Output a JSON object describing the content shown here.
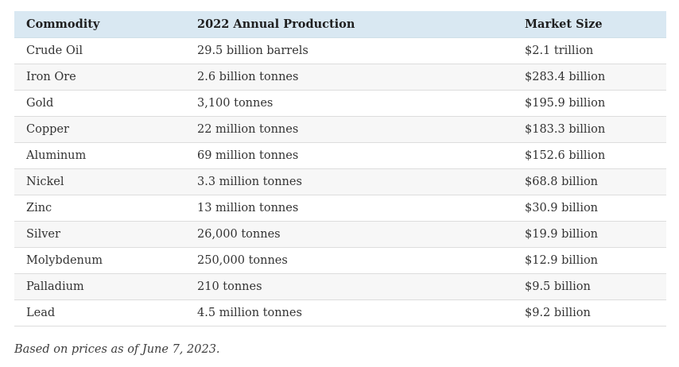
{
  "chart_data": {
    "type": "table",
    "columns": [
      "Commodity",
      "2022 Annual Production",
      "Market Size"
    ],
    "rows": [
      {
        "commodity": "Crude Oil",
        "production": "29.5 billion barrels",
        "market_size": "$2.1 trillion"
      },
      {
        "commodity": "Iron Ore",
        "production": "2.6 billion tonnes",
        "market_size": "$283.4 billion"
      },
      {
        "commodity": "Gold",
        "production": "3,100 tonnes",
        "market_size": "$195.9 billion"
      },
      {
        "commodity": "Copper",
        "production": "22 million tonnes",
        "market_size": "$183.3 billion"
      },
      {
        "commodity": "Aluminum",
        "production": "69 million tonnes",
        "market_size": "$152.6 billion"
      },
      {
        "commodity": "Nickel",
        "production": "3.3 million tonnes",
        "market_size": "$68.8 billion"
      },
      {
        "commodity": "Zinc",
        "production": "13 million tonnes",
        "market_size": "$30.9 billion"
      },
      {
        "commodity": "Silver",
        "production": "26,000 tonnes",
        "market_size": "$19.9 billion"
      },
      {
        "commodity": "Molybdenum",
        "production": "250,000 tonnes",
        "market_size": "$12.9 billion"
      },
      {
        "commodity": "Palladium",
        "production": "210 tonnes",
        "market_size": "$9.5 billion"
      },
      {
        "commodity": "Lead",
        "production": "4.5 million tonnes",
        "market_size": "$9.2 billion"
      }
    ],
    "footnote": "Based on prices as of June 7, 2023."
  },
  "colors": {
    "header_bg": "#d9e8f2",
    "row_alt_bg": "#f7f7f7",
    "row_border": "#dddddd",
    "header_text": "#1f1f1f",
    "body_text": "#333333",
    "footnote_text": "#3d3d3d",
    "page_bg": "#ffffff"
  }
}
